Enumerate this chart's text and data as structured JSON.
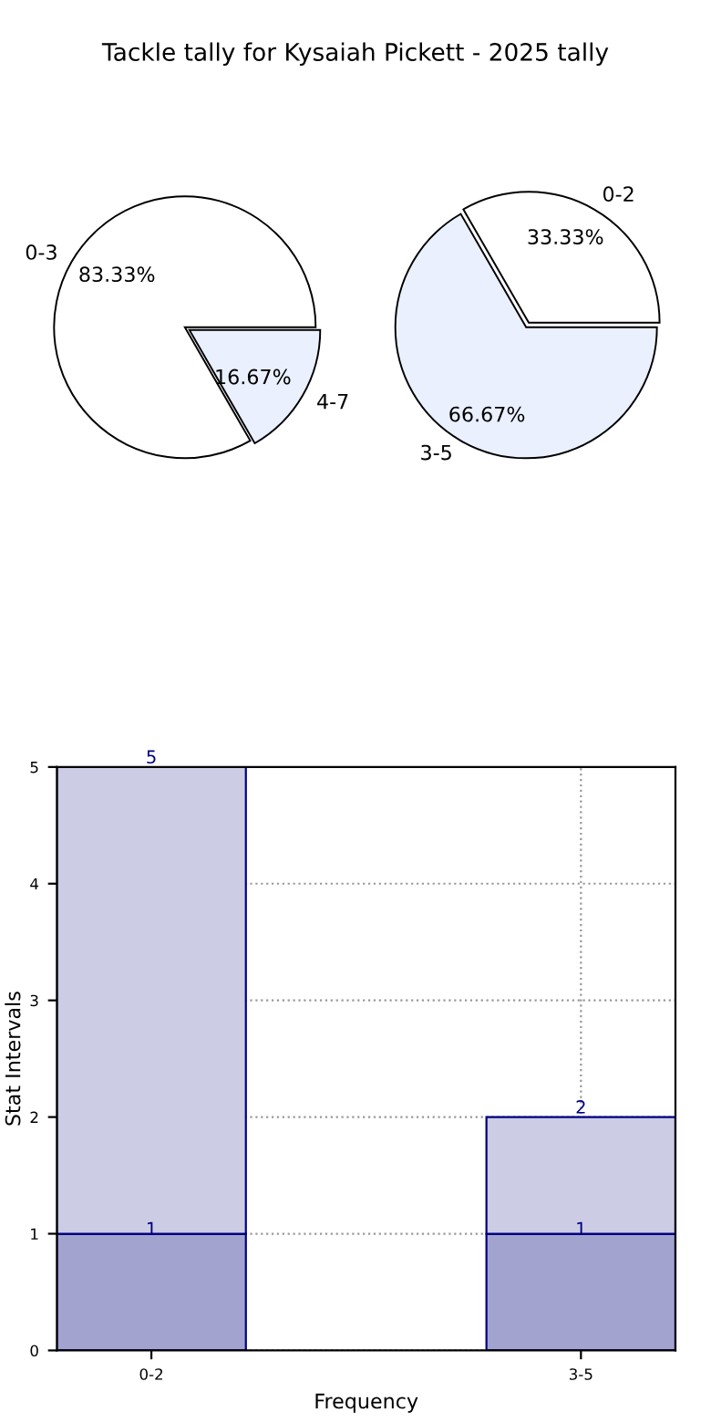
{
  "chart_data": [
    {
      "type": "pie",
      "title": "Tackle tally for Kysaiah Pickett - 2025 tally",
      "categories": [
        "0-3",
        "4-7"
      ],
      "values": [
        83.33,
        16.67
      ],
      "colors": [
        "#ffffff",
        "#eaf0fd"
      ],
      "value_labels": [
        "83.33%",
        "16.67%"
      ]
    },
    {
      "type": "pie",
      "categories": [
        "0-2",
        "3-5"
      ],
      "values": [
        33.33,
        66.67
      ],
      "colors": [
        "#ffffff",
        "#eaf0fd"
      ],
      "value_labels": [
        "33.33%",
        "66.67%"
      ]
    },
    {
      "type": "bar",
      "stacked": true,
      "categories": [
        "0-2",
        "3-5"
      ],
      "xlabel": "Frequency",
      "ylabel": "Stat Intervals",
      "ylim": [
        0,
        5
      ],
      "yticks": [
        0,
        1,
        2,
        3,
        4,
        5
      ],
      "grid": true,
      "totals": [
        "5",
        "2"
      ],
      "series": [
        {
          "color": "#a3a3d0",
          "values": [
            1,
            1
          ],
          "value_labels": [
            "1",
            "1"
          ]
        },
        {
          "color": "#cccce4",
          "values": [
            4,
            1
          ]
        }
      ]
    }
  ]
}
